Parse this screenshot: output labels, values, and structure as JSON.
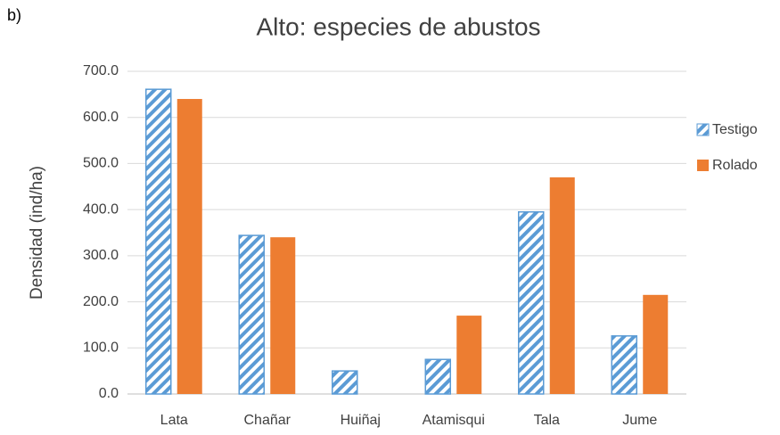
{
  "chart_data": {
    "type": "bar",
    "label": "b)",
    "title": "Alto: especies de abustos",
    "ylabel": "Densidad (ind/ha)",
    "categories": [
      "Lata",
      "Chañar",
      "Huiñaj",
      "Atamisqui",
      "Tala",
      "Jume"
    ],
    "series": [
      {
        "name": "Testigo",
        "color": "#5b9bd5",
        "pattern": "hatch",
        "values": [
          661,
          344,
          50,
          75,
          395,
          126
        ]
      },
      {
        "name": "Rolado",
        "color": "#ed7d31",
        "values": [
          640,
          340,
          0,
          170,
          470,
          215
        ]
      }
    ],
    "ylim": [
      0,
      700
    ],
    "yticks": [
      {
        "value": 0,
        "label": "0.0"
      },
      {
        "value": 100,
        "label": "100.0"
      },
      {
        "value": 200,
        "label": "200.0"
      },
      {
        "value": 300,
        "label": "300.0"
      },
      {
        "value": 400,
        "label": "400.0"
      },
      {
        "value": 500,
        "label": "500.0"
      },
      {
        "value": 600,
        "label": "600.0"
      },
      {
        "value": 700,
        "label": "700.0"
      }
    ],
    "grid": true,
    "legend": "right"
  }
}
